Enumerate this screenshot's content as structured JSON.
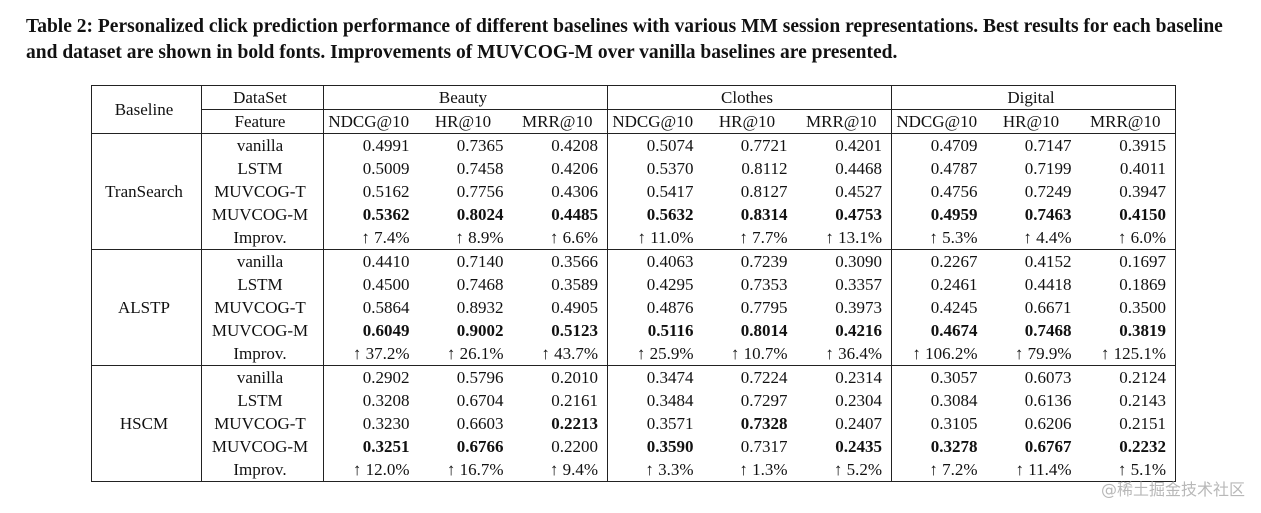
{
  "caption": "Table 2: Personalized click prediction performance of different baselines with various MM session representations. Best results for each baseline and dataset are shown in bold fonts. Improvements of MUVCOG-M over vanilla baselines are presented.",
  "table": {
    "header": {
      "baseline": "Baseline",
      "dataset": "DataSet",
      "feature": "Feature",
      "datasets": [
        "Beauty",
        "Clothes",
        "Digital"
      ],
      "metrics": [
        "NDCG@10",
        "HR@10",
        "MRR@10"
      ]
    },
    "groups": [
      {
        "baseline": "TranSearch",
        "rows": [
          {
            "feature": "vanilla",
            "cells": [
              "0.4991",
              "0.7365",
              "0.4208",
              "0.5074",
              "0.7721",
              "0.4201",
              "0.4709",
              "0.7147",
              "0.3915"
            ],
            "bold": []
          },
          {
            "feature": "LSTM",
            "cells": [
              "0.5009",
              "0.7458",
              "0.4206",
              "0.5370",
              "0.8112",
              "0.4468",
              "0.4787",
              "0.7199",
              "0.4011"
            ],
            "bold": []
          },
          {
            "feature": "MUVCOG-T",
            "cells": [
              "0.5162",
              "0.7756",
              "0.4306",
              "0.5417",
              "0.8127",
              "0.4527",
              "0.4756",
              "0.7249",
              "0.3947"
            ],
            "bold": []
          },
          {
            "feature": "MUVCOG-M",
            "cells": [
              "0.5362",
              "0.8024",
              "0.4485",
              "0.5632",
              "0.8314",
              "0.4753",
              "0.4959",
              "0.7463",
              "0.4150"
            ],
            "bold": [
              0,
              1,
              2,
              3,
              4,
              5,
              6,
              7,
              8
            ]
          },
          {
            "feature": "Improv.",
            "cells": [
              "↑ 7.4%",
              "↑ 8.9%",
              "↑ 6.6%",
              "↑ 11.0%",
              "↑ 7.7%",
              "↑ 13.1%",
              "↑ 5.3%",
              "↑ 4.4%",
              "↑ 6.0%"
            ],
            "bold": []
          }
        ]
      },
      {
        "baseline": "ALSTP",
        "rows": [
          {
            "feature": "vanilla",
            "cells": [
              "0.4410",
              "0.7140",
              "0.3566",
              "0.4063",
              "0.7239",
              "0.3090",
              "0.2267",
              "0.4152",
              "0.1697"
            ],
            "bold": []
          },
          {
            "feature": "LSTM",
            "cells": [
              "0.4500",
              "0.7468",
              "0.3589",
              "0.4295",
              "0.7353",
              "0.3357",
              "0.2461",
              "0.4418",
              "0.1869"
            ],
            "bold": []
          },
          {
            "feature": "MUVCOG-T",
            "cells": [
              "0.5864",
              "0.8932",
              "0.4905",
              "0.4876",
              "0.7795",
              "0.3973",
              "0.4245",
              "0.6671",
              "0.3500"
            ],
            "bold": []
          },
          {
            "feature": "MUVCOG-M",
            "cells": [
              "0.6049",
              "0.9002",
              "0.5123",
              "0.5116",
              "0.8014",
              "0.4216",
              "0.4674",
              "0.7468",
              "0.3819"
            ],
            "bold": [
              0,
              1,
              2,
              3,
              4,
              5,
              6,
              7,
              8
            ]
          },
          {
            "feature": "Improv.",
            "cells": [
              "↑ 37.2%",
              "↑ 26.1%",
              "↑ 43.7%",
              "↑ 25.9%",
              "↑ 10.7%",
              "↑ 36.4%",
              "↑ 106.2%",
              "↑ 79.9%",
              "↑ 125.1%"
            ],
            "bold": []
          }
        ]
      },
      {
        "baseline": "HSCM",
        "rows": [
          {
            "feature": "vanilla",
            "cells": [
              "0.2902",
              "0.5796",
              "0.2010",
              "0.3474",
              "0.7224",
              "0.2314",
              "0.3057",
              "0.6073",
              "0.2124"
            ],
            "bold": []
          },
          {
            "feature": "LSTM",
            "cells": [
              "0.3208",
              "0.6704",
              "0.2161",
              "0.3484",
              "0.7297",
              "0.2304",
              "0.3084",
              "0.6136",
              "0.2143"
            ],
            "bold": []
          },
          {
            "feature": "MUVCOG-T",
            "cells": [
              "0.3230",
              "0.6603",
              "0.2213",
              "0.3571",
              "0.7328",
              "0.2407",
              "0.3105",
              "0.6206",
              "0.2151"
            ],
            "bold": [
              2,
              4
            ]
          },
          {
            "feature": "MUVCOG-M",
            "cells": [
              "0.3251",
              "0.6766",
              "0.2200",
              "0.3590",
              "0.7317",
              "0.2435",
              "0.3278",
              "0.6767",
              "0.2232"
            ],
            "bold": [
              0,
              1,
              3,
              5,
              6,
              7,
              8
            ]
          },
          {
            "feature": "Improv.",
            "cells": [
              "↑ 12.0%",
              "↑ 16.7%",
              "↑ 9.4%",
              "↑ 3.3%",
              "↑ 1.3%",
              "↑ 5.2%",
              "↑ 7.2%",
              "↑ 11.4%",
              "↑ 5.1%"
            ],
            "bold": []
          }
        ]
      }
    ]
  },
  "watermark": "@稀土掘金技术社区"
}
